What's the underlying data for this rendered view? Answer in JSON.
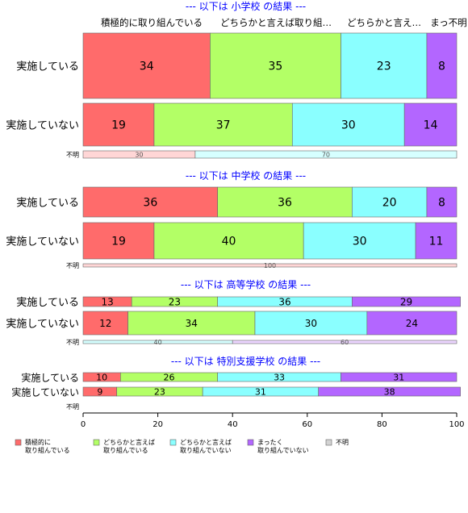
{
  "chart_data": {
    "type": "bar",
    "orientation": "horizontal",
    "stacked": true,
    "percent": true,
    "xlim": [
      0,
      100
    ],
    "x_ticks": [
      "0",
      "20",
      "40",
      "60",
      "80",
      "100"
    ],
    "top_labels": [
      "積極的に取り組んでいる",
      "どちらかと言えば取り組…",
      "どちらかと言え…",
      "まっ不明"
    ],
    "colors": [
      "#ff6b6b",
      "#b3ff66",
      "#8affff",
      "#b366ff",
      "#d3d3d3"
    ],
    "colors_light": [
      "#ffd6d6",
      "#e8ffd6",
      "#d6ffff",
      "#ecd6ff",
      "#eeeeee"
    ],
    "legend": {
      "placement": "bottom",
      "entries": [
        {
          "line1": "積極的に",
          "line2": "取り組んでいる"
        },
        {
          "line1": "どちらかと言えば",
          "line2": "取り組んでいる"
        },
        {
          "line1": "どちらかと言えば",
          "line2": "取り組んでいない"
        },
        {
          "line1": "まったく",
          "line2": "取り組んでいない"
        },
        {
          "line1": "不明",
          "line2": ""
        }
      ]
    },
    "groups": [
      {
        "title": "--- 以下は 小学校 の結果 ---",
        "rows": [
          {
            "label": "実施している",
            "values": [
              34,
              35,
              23,
              8
            ]
          },
          {
            "label": "実施していない",
            "values": [
              19,
              37,
              30,
              14
            ]
          },
          {
            "label": "不明",
            "values": [
              30,
              0,
              70,
              0
            ]
          }
        ]
      },
      {
        "title": "--- 以下は 中学校 の結果 ---",
        "rows": [
          {
            "label": "実施している",
            "values": [
              36,
              36,
              20,
              8
            ]
          },
          {
            "label": "実施していない",
            "values": [
              19,
              40,
              30,
              11
            ]
          },
          {
            "label": "不明",
            "values": [
              100,
              0,
              0,
              0
            ]
          }
        ]
      },
      {
        "title": "--- 以下は 高等学校 の結果 ---",
        "rows": [
          {
            "label": "実施している",
            "values": [
              13,
              23,
              36,
              29
            ]
          },
          {
            "label": "実施していない",
            "values": [
              12,
              34,
              30,
              24
            ]
          },
          {
            "label": "不明",
            "values": [
              0,
              0,
              40,
              60
            ]
          }
        ]
      },
      {
        "title": "--- 以下は 特別支援学校 の結果 ---",
        "rows": [
          {
            "label": "実施している",
            "values": [
              10,
              26,
              33,
              31
            ]
          },
          {
            "label": "実施していない",
            "values": [
              9,
              23,
              31,
              38
            ]
          },
          {
            "label": "不明",
            "values": []
          }
        ]
      }
    ]
  }
}
